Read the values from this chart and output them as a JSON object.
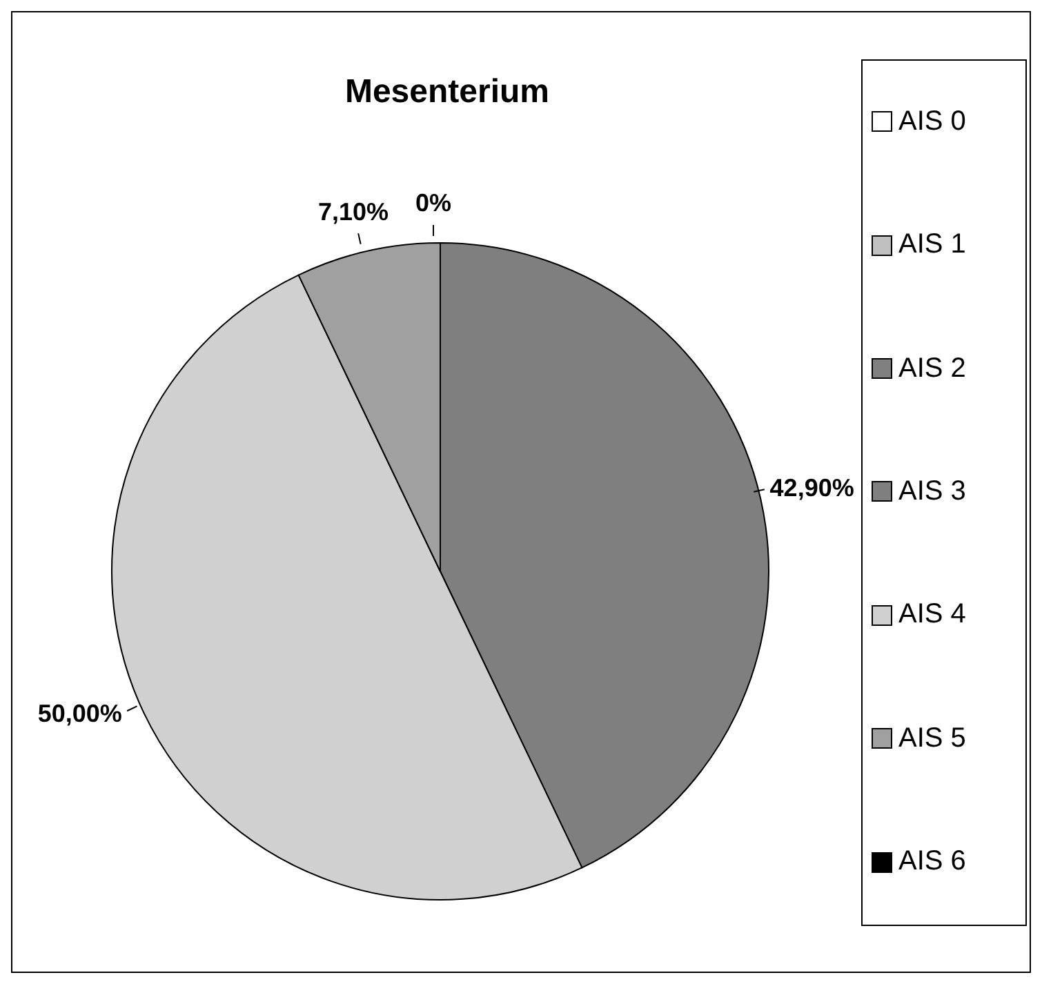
{
  "chart_data": {
    "type": "pie",
    "title": "Mesenterium",
    "categories": [
      "AIS 0",
      "AIS 1",
      "AIS 2",
      "AIS 3",
      "AIS 4",
      "AIS 5",
      "AIS 6"
    ],
    "values": [
      0,
      0,
      0,
      42.9,
      50,
      7.1,
      0
    ],
    "value_labels": [
      null,
      null,
      null,
      "42,90%",
      "50,00%",
      "7,10%",
      "0%"
    ],
    "colors": [
      "#ffffff",
      "#c0c0c0",
      "#808080",
      "#7f7f7f",
      "#d0d0d0",
      "#a0a0a0",
      "#000000"
    ],
    "legend": "right"
  }
}
